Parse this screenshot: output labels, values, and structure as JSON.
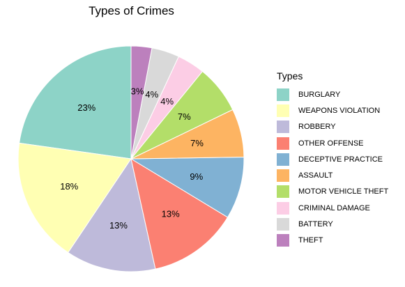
{
  "chart_data": {
    "type": "pie",
    "title": "Types of Crimes",
    "legend_title": "Types",
    "legend_position": "right",
    "start": "top, counter-clockwise",
    "slices": [
      {
        "label": "BURGLARY",
        "value": 23,
        "text": "23%",
        "color": "#8DD3C7"
      },
      {
        "label": "WEAPONS VIOLATION",
        "value": 18,
        "text": "18%",
        "color": "#FFFFB3"
      },
      {
        "label": "ROBBERY",
        "value": 13,
        "text": "13%",
        "color": "#BEBADA"
      },
      {
        "label": "OTHER OFFENSE",
        "value": 13,
        "text": "13%",
        "color": "#FB8072"
      },
      {
        "label": "DECEPTIVE PRACTICE",
        "value": 9,
        "text": "9%",
        "color": "#80B1D3"
      },
      {
        "label": "ASSAULT",
        "value": 7,
        "text": "7%",
        "color": "#FDB462"
      },
      {
        "label": "MOTOR VEHICLE THEFT",
        "value": 7,
        "text": "7%",
        "color": "#B3DE69"
      },
      {
        "label": "CRIMINAL DAMAGE",
        "value": 4,
        "text": "4%",
        "color": "#FCCDE5"
      },
      {
        "label": "BATTERY",
        "value": 4,
        "text": "4%",
        "color": "#D9D9D9"
      },
      {
        "label": "THEFT",
        "value": 3,
        "text": "3%",
        "color": "#BC80BD"
      }
    ]
  }
}
